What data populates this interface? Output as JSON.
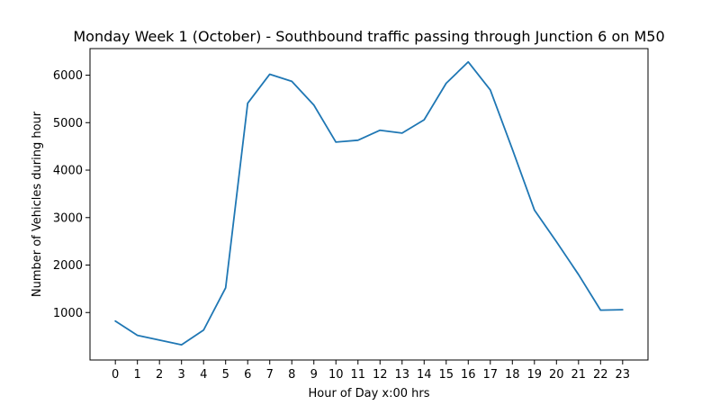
{
  "chart_data": {
    "type": "line",
    "title": "Monday Week 1 (October) - Southbound traffic passing through Junction 6 on M50",
    "xlabel": "Hour of Day x:00 hrs",
    "ylabel": "Number of Vehicles during hour",
    "x": [
      0,
      1,
      2,
      3,
      4,
      5,
      6,
      7,
      8,
      9,
      10,
      11,
      12,
      13,
      14,
      15,
      16,
      17,
      18,
      19,
      20,
      21,
      22,
      23
    ],
    "x_tick_labels": [
      "0",
      "1",
      "2",
      "3",
      "4",
      "5",
      "6",
      "7",
      "8",
      "9",
      "10",
      "11",
      "12",
      "13",
      "14",
      "15",
      "16",
      "17",
      "18",
      "19",
      "20",
      "21",
      "22",
      "23"
    ],
    "xlim": [
      -1.15,
      24.15
    ],
    "ylim": [
      0,
      6560
    ],
    "y_ticks": [
      1000,
      2000,
      3000,
      4000,
      5000,
      6000
    ],
    "y_tick_labels": [
      "1000",
      "2000",
      "3000",
      "4000",
      "5000",
      "6000"
    ],
    "grid": false,
    "series": [
      {
        "color": "#1f77b4",
        "values": [
          820,
          520,
          420,
          320,
          630,
          1520,
          5410,
          6020,
          5870,
          5370,
          4590,
          4630,
          4840,
          4780,
          5060,
          5830,
          6280,
          5690,
          4440,
          3160,
          2490,
          1800,
          1050,
          1060
        ]
      }
    ]
  }
}
